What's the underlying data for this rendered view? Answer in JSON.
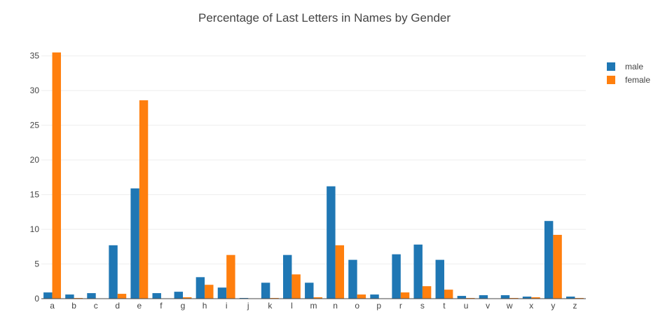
{
  "chart_data": {
    "type": "bar",
    "title": "Percentage of Last Letters in Names by Gender",
    "xlabel": "",
    "ylabel": "",
    "ylim": [
      0,
      37.5
    ],
    "yticks": [
      0,
      5,
      10,
      15,
      20,
      25,
      30,
      35
    ],
    "grid": true,
    "legend_position": "top-right",
    "categories": [
      "a",
      "b",
      "c",
      "d",
      "e",
      "f",
      "g",
      "h",
      "i",
      "j",
      "k",
      "l",
      "m",
      "n",
      "o",
      "p",
      "r",
      "s",
      "t",
      "u",
      "v",
      "w",
      "x",
      "y",
      "z"
    ],
    "series": [
      {
        "name": "male",
        "color": "#1f77b4",
        "values": [
          0.9,
          0.6,
          0.8,
          7.7,
          15.9,
          0.8,
          1.0,
          3.1,
          1.6,
          0.1,
          2.3,
          6.3,
          2.3,
          16.2,
          5.6,
          0.6,
          6.4,
          7.8,
          5.6,
          0.4,
          0.5,
          0.5,
          0.3,
          11.2,
          0.3
        ]
      },
      {
        "name": "female",
        "color": "#ff7f0e",
        "values": [
          35.5,
          0.1,
          0.0,
          0.7,
          28.6,
          0.0,
          0.2,
          2.0,
          6.3,
          0.0,
          0.1,
          3.5,
          0.2,
          7.7,
          0.6,
          0.0,
          0.9,
          1.8,
          1.3,
          0.1,
          0.0,
          0.1,
          0.2,
          9.2,
          0.1
        ]
      }
    ]
  }
}
